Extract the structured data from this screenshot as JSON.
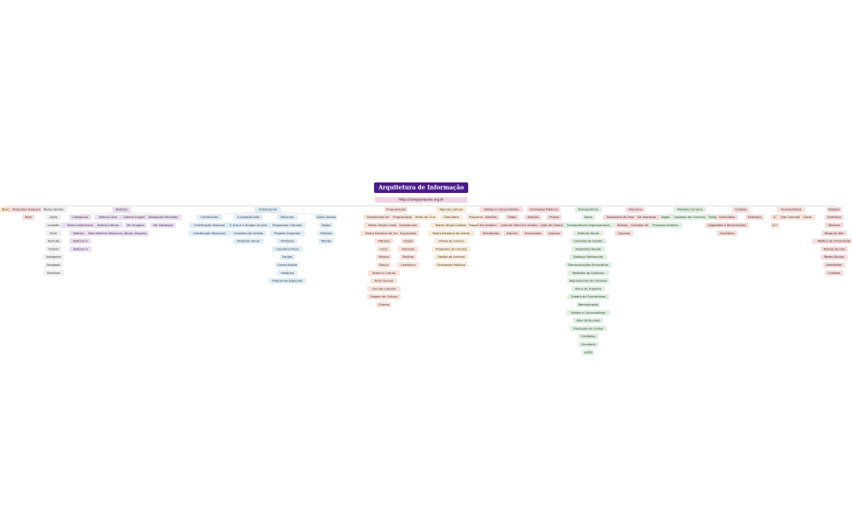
{
  "header": {
    "title": "Arquitetura de Informação",
    "url": "https://amigosdaarte.org.br"
  },
  "sections": [
    {
      "label": "Busca",
      "color": "#fde5c8",
      "columns": []
    },
    {
      "label": "Perguntas Frequentes",
      "color": "#fbd9d9",
      "columns": [
        [
          "Item"
        ]
      ]
    },
    {
      "label": "Redes Sociais",
      "color": "#eeeeee",
      "columns": [
        [
          "Artes",
          "LinkedIn",
          "Flickr",
          "Youtube",
          "Tumblr",
          "Instagram",
          "Facebook",
          "Pinterest"
        ]
      ]
    },
    {
      "label": "Notícias",
      "color": "#ecdcf5",
      "columns": [
        [
          "Categorias",
          "Texto Institucional",
          "Notícias 1",
          "Notícias 2",
          "Notícias 3"
        ],
        [
          "Notícia Lista",
          "Notícia Interna",
          "Mais Notícias Relacionadas"
        ],
        [
          "Galeria Imagens",
          "Ver Imagem",
          "Álbum Imagens"
        ],
        [
          "Destaques Parceiros",
          "Ver Destaque"
        ]
      ]
    },
    {
      "label": "Institucional",
      "color": "#dceefb",
      "columns": [
        [
          "Certificados",
          "Certificação Estadual",
          "Certificação Municipal"
        ],
        [
          "A Questão Arte",
          "O Que é a Amigos da Arte",
          "Conselho de Gestão",
          "Relatório Anual"
        ],
        [
          "Parcerias",
          "Programas Culturais",
          "Projetos Especiais",
          "Diretoria",
          "Conselho Fiscal",
          "Equipe",
          "Comunicação",
          "Histórico",
          "Programas Especiais"
        ],
        [
          "Quem Somos",
          "Ações",
          "Prêmios",
          "Missão"
        ]
      ]
    },
    {
      "label": "Programação",
      "color": "#fde0d6",
      "columns": [
        [
          "Espetáculos em Cartaz",
          "Teatro Sérgio Cardoso",
          "Teatro Estadual de Araras",
          "Oficinas",
          "Circo",
          "Música",
          "Dança",
          "Teatro e Cultura",
          "Artes Visuais",
          "Circuito Cultural",
          "Viagem de Cultura",
          "Cinema"
        ],
        [
          "Programação Infantil",
          "Espetáculos",
          "Exposições",
          "Shows",
          "Festivais",
          "Mostras",
          "Literatura"
        ]
      ]
    },
    {
      "label": "Agenda Cultural",
      "color": "#fdebd3",
      "columns": [
        [
          "Ponto de Cruz"
        ],
        [
          "Calendário",
          "Teatro Sérgio Cardoso",
          "Teatro Estadual de Araras",
          "Virada da Cultura",
          "Programa de Circuito",
          "Gestão de Eventos",
          "Chamadas Públicas"
        ],
        [
          "Programa 1",
          "Programa 2"
        ]
      ]
    },
    {
      "label": "Editais e Convocatórias",
      "color": "#fbd9d9",
      "columns": [
        [
          "Abertos",
          "Em Andamento",
          "Resultados"
        ],
        [
          "Todos",
          "Lista de Editais",
          "Arquivo"
        ]
      ]
    },
    {
      "label": "Chamadas Públicas",
      "color": "#fbd9d9",
      "columns": [
        [
          "Abertas",
          "Em Andamento",
          "Encerradas"
        ],
        [
          "Prazos",
          "Lista de Chamadas",
          "Arquivo"
        ]
      ]
    },
    {
      "label": "Transparência",
      "color": "#dcf1de",
      "columns": [
        [
          "Sobre",
          "Transparência Organizacional",
          "Estatuto Social",
          "Contrato de Gestão",
          "Relatórios Anuais",
          "Balanço Patrimonial",
          "Demonstrações Financeiras",
          "Relatório de Auditoria",
          "Regulamento de Compras",
          "Plano de Trabalho",
          "Quadro de Funcionários",
          "Remuneração",
          "Editais e Convocatórias",
          "Atas de Reunião",
          "Prestação de Contas",
          "Certidões",
          "Ouvidoria",
          "LGPD"
        ]
      ]
    },
    {
      "label": "Imprensa",
      "color": "#fbd9d9",
      "columns": [
        [
          "Assessoria de Imprensa",
          "Releases",
          "Clipping"
        ],
        [
          "Kit Imprensa",
          "Contatos de Imprensa"
        ]
      ]
    },
    {
      "label": "Trabalhe Conosco",
      "color": "#dcf1de",
      "columns": [
        [
          "Vagas",
          "Processo Seletivo"
        ],
        [
          "Cadastro de Currículo"
        ],
        [
          "Estágio"
        ]
      ]
    },
    {
      "label": "Contato",
      "color": "#fbd9d9",
      "columns": [
        [
          "Formulário",
          "Sugestões e Reclamações",
          "Ouvidoria"
        ],
        [
          "Endereço"
        ]
      ]
    },
    {
      "label": "Acessibilidade",
      "color": "#fde0d6",
      "columns": [
        [
          "A-",
          "A+"
        ],
        [
          "Alto Contraste"
        ],
        [
          "Libras"
        ]
      ]
    },
    {
      "label": "Rodapé",
      "color": "#fbd9d9",
      "columns": [
        [
          "Endereço",
          "Telefone",
          "Mapa do Site",
          "Política de Privacidade",
          "Termos de Uso",
          "Redes Sociais",
          "Newsletter",
          "Créditos"
        ]
      ]
    }
  ]
}
